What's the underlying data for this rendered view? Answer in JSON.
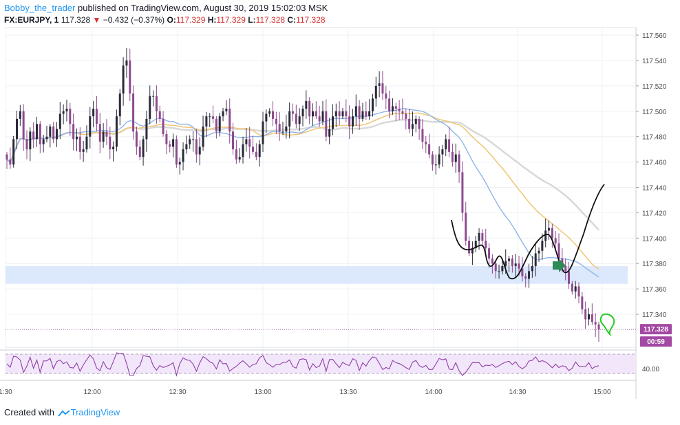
{
  "header": {
    "author": "Bobby_the_trader",
    "published": "published on TradingView.com, August 30, 2019 15:02:03 MSK",
    "symbol": "FX:EURJPY, 1",
    "last": "117.328",
    "change_arrow": "▼",
    "change": "−0.432 (−0.37%)",
    "o_label": "O:",
    "o_value": "117.329",
    "h_label": "H:",
    "h_value": "117.329",
    "l_label": "L:",
    "l_value": "117.328",
    "c_label": "C:",
    "c_value": "117.328"
  },
  "footer": {
    "created_with": "Created with",
    "brand": "TradingView"
  },
  "badges": {
    "price": "117.328",
    "countdown": "00:59",
    "rsi": "40.00"
  },
  "colors": {
    "up": "#2a2a3a",
    "down": "#8e4a8e",
    "ma_fast": "#8fb4e8",
    "ma_mid": "#f0c87a",
    "ma_slow": "#d8d8d8",
    "zone": "#dce8fb",
    "rsi_line": "#8e3fa5",
    "rsi_band": "#f2e6fa",
    "arrow": "#2e8b57",
    "hand": "#22cc22"
  },
  "chart_data": {
    "type": "candlestick",
    "symbol": "FX:EURJPY",
    "interval": "1",
    "x_ticks": [
      "1:30",
      "12:00",
      "12:30",
      "13:00",
      "13:30",
      "14:00",
      "14:30",
      "15:00"
    ],
    "y_ticks": [
      "117.560",
      "117.540",
      "117.520",
      "117.500",
      "117.480",
      "117.460",
      "117.440",
      "117.420",
      "117.400",
      "117.380",
      "117.360",
      "117.340"
    ],
    "ylim": [
      117.314,
      117.566
    ],
    "zone": [
      117.364,
      117.378
    ],
    "last_price": 117.328,
    "rsi_level": 40.0,
    "closes": [
      117.462,
      117.458,
      117.478,
      117.494,
      117.5,
      117.478,
      117.47,
      117.484,
      117.478,
      117.49,
      117.474,
      117.478,
      117.48,
      117.488,
      117.478,
      117.486,
      117.498,
      117.5,
      117.502,
      117.49,
      117.478,
      117.48,
      117.468,
      117.47,
      117.48,
      117.496,
      117.502,
      117.49,
      117.476,
      117.484,
      117.48,
      117.47,
      117.472,
      117.496,
      117.514,
      117.536,
      117.54,
      117.514,
      117.484,
      117.472,
      117.464,
      117.478,
      117.494,
      117.512,
      117.512,
      117.5,
      117.494,
      117.482,
      117.474,
      117.472,
      117.478,
      117.458,
      117.46,
      117.47,
      117.474,
      117.478,
      117.478,
      117.466,
      117.472,
      117.488,
      117.496,
      117.496,
      117.494,
      117.484,
      117.496,
      117.5,
      117.502,
      117.484,
      117.47,
      117.462,
      117.464,
      117.474,
      117.478,
      117.472,
      117.468,
      117.464,
      117.474,
      117.492,
      117.498,
      117.5,
      117.494,
      117.49,
      117.484,
      117.484,
      117.488,
      117.5,
      117.498,
      117.49,
      117.496,
      117.502,
      117.508,
      117.496,
      117.5,
      117.496,
      117.492,
      117.5,
      117.48,
      117.486,
      117.496,
      117.5,
      117.496,
      117.5,
      117.496,
      117.488,
      117.496,
      117.504,
      117.494,
      117.5,
      117.496,
      117.5,
      117.51,
      117.52,
      117.522,
      117.514,
      117.51,
      117.5,
      117.504,
      117.502,
      117.5,
      117.498,
      117.494,
      117.486,
      117.49,
      117.494,
      117.486,
      117.476,
      117.474,
      117.466,
      117.458,
      117.458,
      117.466,
      117.47,
      117.478,
      117.468,
      117.46,
      117.466,
      117.452,
      117.42,
      117.398,
      117.388,
      117.392,
      117.398,
      117.404,
      117.398,
      117.392,
      117.384,
      117.38,
      117.374,
      117.374,
      117.378,
      117.382,
      117.384,
      117.378,
      117.38,
      117.376,
      117.37,
      117.368,
      117.374,
      117.378,
      117.388,
      117.39,
      117.398,
      117.406,
      117.408,
      117.4,
      117.396,
      117.384,
      117.378,
      117.374,
      117.364,
      117.358,
      117.362,
      117.354,
      117.344,
      117.336,
      117.34,
      117.334,
      117.332,
      117.328
    ]
  }
}
